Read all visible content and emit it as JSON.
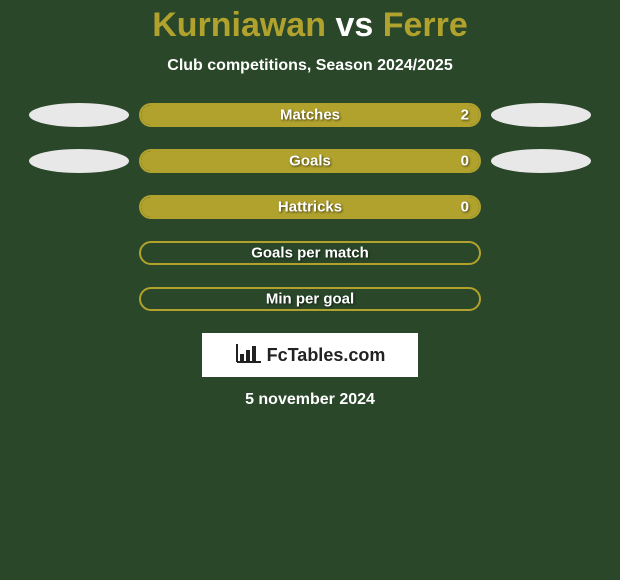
{
  "background_color": "#2a472a",
  "title": {
    "player1": "Kurniawan",
    "vs": "vs",
    "player2": "Ferre",
    "player1_color": "#b0a22d",
    "vs_color": "#ffffff",
    "player2_color": "#b0a22d"
  },
  "subtitle": "Club competitions, Season 2024/2025",
  "bar_border_color": "#b0a22d",
  "bar_fill_color": "#b0a22d",
  "ellipse_left_color": "#e8e8e8",
  "ellipse_right_color": "#e8e8e8",
  "rows": [
    {
      "label": "Matches",
      "value": "2",
      "fill_percent": 100,
      "show_value": true,
      "left_ellipse": true,
      "right_ellipse": true
    },
    {
      "label": "Goals",
      "value": "0",
      "fill_percent": 100,
      "show_value": true,
      "left_ellipse": true,
      "right_ellipse": true
    },
    {
      "label": "Hattricks",
      "value": "0",
      "fill_percent": 100,
      "show_value": true,
      "left_ellipse": false,
      "right_ellipse": false
    },
    {
      "label": "Goals per match",
      "value": "",
      "fill_percent": 0,
      "show_value": false,
      "left_ellipse": false,
      "right_ellipse": false
    },
    {
      "label": "Min per goal",
      "value": "",
      "fill_percent": 0,
      "show_value": false,
      "left_ellipse": false,
      "right_ellipse": false
    }
  ],
  "logo": {
    "text": "FcTables.com",
    "icon_color": "#222222",
    "box_bg": "#ffffff"
  },
  "date": "5 november 2024"
}
